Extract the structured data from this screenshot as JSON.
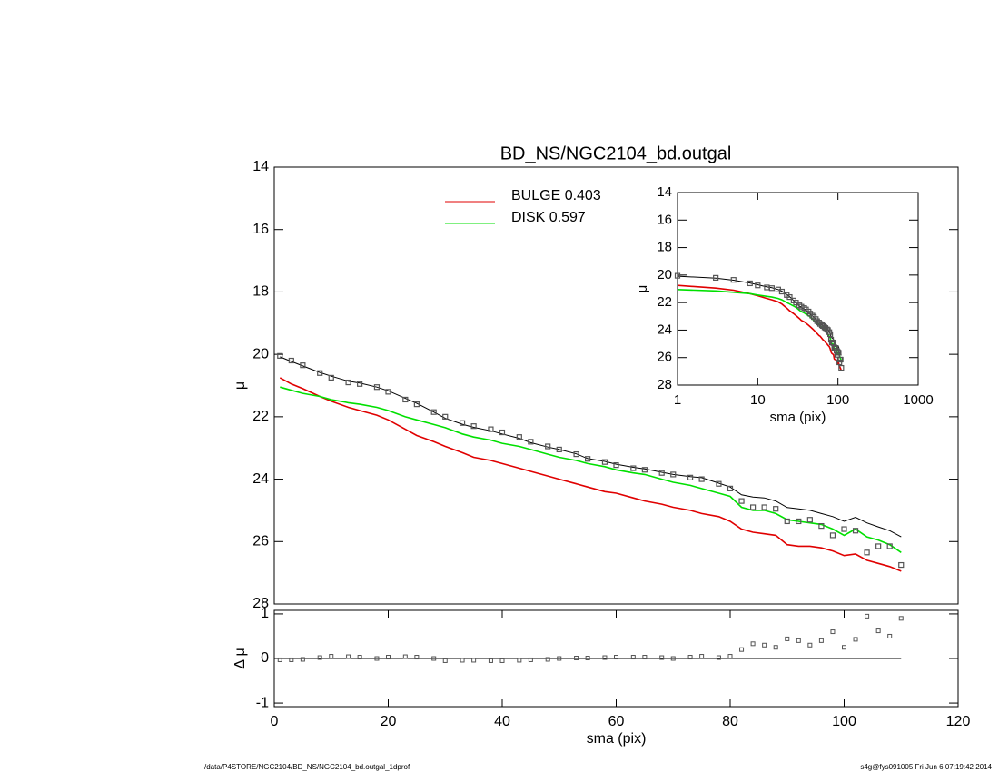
{
  "chart_data": [
    {
      "type": "line",
      "title": "BD_NS/NGC2104_bd.outgal",
      "ylabel": "μ",
      "x": [
        1,
        3,
        5,
        8,
        10,
        13,
        15,
        18,
        20,
        23,
        25,
        28,
        30,
        33,
        35,
        38,
        40,
        43,
        45,
        48,
        50,
        53,
        55,
        58,
        60,
        63,
        65,
        68,
        70,
        73,
        75,
        78,
        80,
        82,
        84,
        86,
        88,
        90,
        92,
        94,
        96,
        98,
        100,
        102,
        104,
        106,
        108,
        110
      ],
      "series": [
        {
          "color": "#000000",
          "values": [
            20.08,
            20.23,
            20.37,
            20.58,
            20.7,
            20.86,
            20.92,
            21.05,
            21.17,
            21.41,
            21.57,
            21.85,
            22.05,
            22.24,
            22.34,
            22.45,
            22.55,
            22.69,
            22.83,
            22.97,
            23.05,
            23.19,
            23.34,
            23.43,
            23.52,
            23.62,
            23.67,
            23.78,
            23.85,
            23.92,
            23.95,
            24.13,
            24.25,
            24.5,
            24.57,
            24.6,
            24.7,
            24.91,
            24.95,
            25.0,
            25.1,
            25.2,
            25.35,
            25.22,
            25.4,
            25.53,
            25.65,
            25.85
          ]
        },
        {
          "name": "BULGE  0.403",
          "color": "#e00000",
          "values": [
            20.75,
            20.95,
            21.1,
            21.35,
            21.5,
            21.7,
            21.8,
            21.95,
            22.1,
            22.4,
            22.6,
            22.8,
            22.95,
            23.15,
            23.3,
            23.4,
            23.5,
            23.65,
            23.75,
            23.9,
            24.0,
            24.15,
            24.25,
            24.4,
            24.45,
            24.6,
            24.7,
            24.8,
            24.9,
            25.0,
            25.1,
            25.2,
            25.35,
            25.6,
            25.7,
            25.75,
            25.8,
            26.1,
            26.15,
            26.15,
            26.2,
            26.3,
            26.45,
            26.4,
            26.6,
            26.7,
            26.8,
            26.95
          ]
        },
        {
          "name": "DISK  0.597",
          "color": "#00e000",
          "values": [
            21.05,
            21.15,
            21.25,
            21.35,
            21.45,
            21.55,
            21.6,
            21.7,
            21.8,
            22.0,
            22.1,
            22.25,
            22.35,
            22.55,
            22.65,
            22.75,
            22.85,
            22.95,
            23.05,
            23.2,
            23.3,
            23.4,
            23.5,
            23.6,
            23.7,
            23.8,
            23.85,
            24.0,
            24.1,
            24.2,
            24.3,
            24.45,
            24.55,
            24.9,
            25.0,
            25.0,
            25.1,
            25.3,
            25.35,
            25.4,
            25.45,
            25.6,
            25.8,
            25.6,
            25.85,
            25.95,
            26.1,
            26.35
          ]
        },
        {
          "color": "#555555",
          "marker": "square",
          "values": [
            20.05,
            20.2,
            20.35,
            20.6,
            20.75,
            20.9,
            20.95,
            21.05,
            21.2,
            21.45,
            21.6,
            21.85,
            22.0,
            22.2,
            22.3,
            22.4,
            22.5,
            22.65,
            22.8,
            22.95,
            23.05,
            23.2,
            23.35,
            23.45,
            23.55,
            23.65,
            23.7,
            23.8,
            23.85,
            23.95,
            24.0,
            24.15,
            24.3,
            24.7,
            24.9,
            24.9,
            24.95,
            25.35,
            25.35,
            25.3,
            25.5,
            25.8,
            25.6,
            25.65,
            26.35,
            26.15,
            26.15,
            26.75
          ]
        }
      ],
      "xlim": [
        0,
        120
      ],
      "ylim": [
        14,
        28
      ],
      "y_inverted": true,
      "yticks": [
        14,
        16,
        18,
        20,
        22,
        24,
        26,
        28
      ]
    },
    {
      "type": "scatter",
      "ylabel": "Δ μ",
      "xlabel": "sma (pix)",
      "color": "#555555",
      "values": [
        -0.03,
        -0.03,
        -0.02,
        0.02,
        0.05,
        0.04,
        0.03,
        0.0,
        0.03,
        0.04,
        0.03,
        0.0,
        -0.05,
        -0.04,
        -0.04,
        -0.05,
        -0.05,
        -0.04,
        -0.03,
        -0.02,
        0.0,
        0.01,
        0.01,
        0.02,
        0.03,
        0.03,
        0.03,
        0.02,
        0.0,
        0.03,
        0.05,
        0.02,
        0.05,
        0.2,
        0.33,
        0.3,
        0.25,
        0.44,
        0.4,
        0.3,
        0.4,
        0.6,
        0.25,
        0.43,
        0.95,
        0.62,
        0.5,
        0.9
      ],
      "xlim": [
        0,
        120
      ],
      "xticks": [
        0,
        20,
        40,
        60,
        80,
        100,
        120
      ],
      "ylim": [
        -1.08,
        1.08
      ],
      "yticks": [
        -1,
        0,
        1
      ]
    },
    {
      "type": "line",
      "ylabel": "μ",
      "xlabel": "sma (pix)",
      "log_x": true,
      "xlim": [
        1,
        1000
      ],
      "xticks": [
        1,
        10,
        100,
        1000
      ],
      "ylim": [
        14,
        28
      ],
      "y_inverted": true,
      "yticks": [
        14,
        16,
        18,
        20,
        22,
        24,
        26,
        28
      ]
    }
  ],
  "footer": {
    "left": "/data/P4STORE/NGC2104/BD_NS/NGC2104_bd.outgal_1dprof",
    "right": "s4g@fys091005  Fri Jun  6 07:19:42 2014"
  }
}
